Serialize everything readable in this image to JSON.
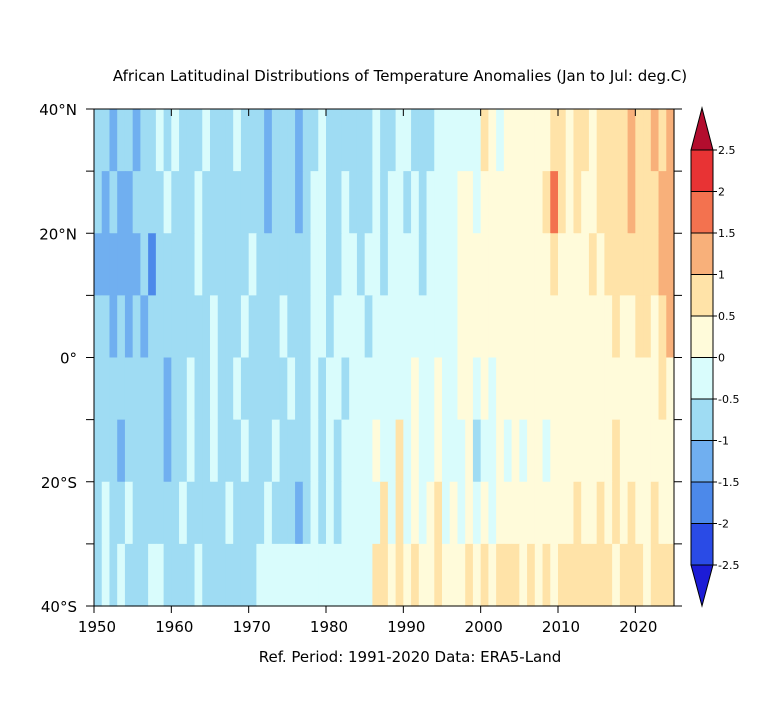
{
  "chart_data": {
    "type": "heatmap",
    "title": "African Latitudinal Distributions of Temperature Anomalies (Jan to Jul: deg.C)",
    "subtitle": "Ref. Period: 1991-2020 Data: ERA5-Land",
    "xlim": [
      1950,
      2025
    ],
    "ylim": [
      -40,
      40
    ],
    "x_ticks": [
      1950,
      1960,
      1970,
      1980,
      1990,
      2000,
      2010,
      2020
    ],
    "x_tick_labels": [
      "1950",
      "1960",
      "1970",
      "1980",
      "1990",
      "2000",
      "2010",
      "2020"
    ],
    "y_ticks": [
      -40,
      -20,
      0,
      20,
      40
    ],
    "y_tick_labels": [
      "40°S",
      "20°S",
      "0°",
      "20°N",
      "40°N"
    ],
    "colorbar": {
      "levels": [
        -2.5,
        -2,
        -1.5,
        -1,
        -0.5,
        0,
        0.5,
        1,
        1.5,
        2,
        2.5
      ],
      "level_labels": [
        "-2.5",
        "-2",
        "-1.5",
        "-1",
        "-0.5",
        "0",
        "0.5",
        "1",
        "1.5",
        "2",
        "2.5"
      ],
      "colors": [
        "#1c1cd6",
        "#2a4be6",
        "#4c89ea",
        "#70aff0",
        "#9fdcf3",
        "#d9fcfc",
        "#fffbda",
        "#ffe3a8",
        "#f8b07a",
        "#f3724f",
        "#e83334",
        "#b30d2e"
      ]
    },
    "data_grid": {
      "x_step": 1,
      "y_bands": [
        -40,
        -30,
        -20,
        -10,
        0,
        10,
        20,
        30,
        40
      ],
      "rows": [
        {
          "y0": 30,
          "y1": 40,
          "values": [
            -1.0,
            -1.0,
            -1.5,
            -1.0,
            -1.0,
            -1.5,
            -1.0,
            -1.0,
            -0.5,
            -1.0,
            -0.5,
            -1.0,
            -1.0,
            -1.0,
            -0.5,
            -1.0,
            -1.0,
            -1.0,
            -0.5,
            -1.0,
            -1.0,
            -1.0,
            -1.5,
            -1.0,
            -1.0,
            -1.0,
            -1.5,
            -1.0,
            -1.0,
            -0.5,
            -1.0,
            -1.0,
            -1.0,
            -1.0,
            -1.0,
            -1.0,
            -0.5,
            -1.0,
            -1.0,
            -0.5,
            -0.5,
            -1.0,
            -1.0,
            -1.0,
            -0.5,
            -0.5,
            -0.5,
            -0.5,
            -0.5,
            -0.5,
            0.5,
            0.0,
            -0.5,
            0.0,
            0.0,
            0.0,
            0.0,
            0.0,
            0.0,
            0.5,
            0.5,
            0.0,
            0.5,
            0.5,
            0.0,
            0.5,
            0.5,
            0.5,
            0.5,
            1.0,
            0.5,
            0.5,
            1.0,
            0.5,
            1.0
          ]
        },
        {
          "y0": 20,
          "y1": 30,
          "values": [
            -1.0,
            -1.5,
            -1.0,
            -1.5,
            -1.5,
            -1.0,
            -1.0,
            -1.0,
            -1.0,
            -0.5,
            -1.0,
            -1.0,
            -1.0,
            -0.5,
            -1.0,
            -1.0,
            -1.0,
            -1.0,
            -1.0,
            -1.0,
            -1.0,
            -1.0,
            -1.5,
            -1.0,
            -1.0,
            -1.0,
            -1.5,
            -1.0,
            -0.5,
            -0.5,
            -1.0,
            -1.0,
            -0.5,
            -1.0,
            -1.0,
            -1.0,
            -0.5,
            -1.0,
            -0.5,
            -0.5,
            -1.0,
            -0.5,
            -1.0,
            -0.5,
            -0.5,
            -0.5,
            -0.5,
            0.0,
            0.0,
            -0.5,
            0.0,
            0.0,
            0.0,
            0.0,
            0.0,
            0.0,
            0.0,
            0.0,
            0.5,
            1.5,
            0.5,
            0.0,
            0.5,
            0.0,
            0.0,
            0.5,
            0.5,
            0.5,
            0.5,
            1.0,
            0.5,
            0.5,
            0.5,
            1.0,
            1.0
          ]
        },
        {
          "y0": 10,
          "y1": 20,
          "values": [
            -1.5,
            -1.5,
            -1.5,
            -1.5,
            -1.5,
            -1.5,
            -1.0,
            -2.0,
            -1.0,
            -1.0,
            -1.0,
            -1.0,
            -1.0,
            -0.5,
            -1.0,
            -1.0,
            -1.0,
            -1.0,
            -1.0,
            -1.0,
            -0.5,
            -1.0,
            -1.0,
            -1.0,
            -1.0,
            -1.0,
            -1.0,
            -1.0,
            -0.5,
            -0.5,
            -1.0,
            -1.0,
            -0.5,
            -0.5,
            -1.0,
            -0.5,
            -0.5,
            -1.0,
            -0.5,
            -0.5,
            -0.5,
            -0.5,
            -1.0,
            -0.5,
            -0.5,
            -0.5,
            -0.5,
            0.0,
            0.0,
            0.0,
            0.0,
            0.0,
            0.0,
            0.0,
            0.0,
            0.0,
            0.0,
            0.0,
            0.0,
            0.5,
            0.0,
            0.0,
            0.0,
            0.0,
            0.5,
            0.0,
            0.5,
            0.5,
            0.5,
            0.5,
            0.5,
            0.5,
            0.5,
            1.0,
            1.0
          ]
        },
        {
          "y0": 0,
          "y1": 10,
          "values": [
            -1.0,
            -1.0,
            -1.5,
            -1.0,
            -1.5,
            -1.0,
            -1.5,
            -1.0,
            -1.0,
            -1.0,
            -1.0,
            -1.0,
            -1.0,
            -1.0,
            -1.0,
            -0.5,
            -1.0,
            -1.0,
            -1.0,
            -0.5,
            -1.0,
            -1.0,
            -1.0,
            -1.0,
            -0.5,
            -1.0,
            -1.0,
            -1.0,
            -0.5,
            -0.5,
            -1.0,
            -0.5,
            -0.5,
            -0.5,
            -0.5,
            -1.0,
            -0.5,
            -0.5,
            -0.5,
            -0.5,
            -0.5,
            -0.5,
            -0.5,
            -0.5,
            -0.5,
            -0.5,
            -0.5,
            0.0,
            0.0,
            0.0,
            0.0,
            0.0,
            0.0,
            0.0,
            0.0,
            0.0,
            0.0,
            0.0,
            0.0,
            0.0,
            0.0,
            0.0,
            0.0,
            0.0,
            0.0,
            0.0,
            0.0,
            0.5,
            0.0,
            0.0,
            0.5,
            0.5,
            0.0,
            0.5,
            1.0
          ]
        },
        {
          "y0": -10,
          "y1": 0,
          "values": [
            -1.0,
            -1.0,
            -1.0,
            -1.0,
            -1.0,
            -1.0,
            -1.0,
            -1.0,
            -1.0,
            -1.5,
            -1.0,
            -1.0,
            -0.5,
            -1.0,
            -1.0,
            -0.5,
            -1.0,
            -1.0,
            -0.5,
            -1.0,
            -1.0,
            -1.0,
            -1.0,
            -1.0,
            -1.0,
            -0.5,
            -1.0,
            -1.0,
            -0.5,
            -1.0,
            -0.5,
            -0.5,
            -1.0,
            -0.5,
            -0.5,
            -0.5,
            -0.5,
            -0.5,
            -0.5,
            -0.5,
            -0.5,
            0.0,
            -0.5,
            -0.5,
            0.0,
            -0.5,
            -0.5,
            0.0,
            0.0,
            -0.5,
            0.0,
            -0.5,
            0.0,
            0.0,
            0.0,
            0.0,
            0.0,
            0.0,
            0.0,
            0.0,
            0.0,
            0.0,
            0.0,
            0.0,
            0.0,
            0.0,
            0.0,
            0.0,
            0.0,
            0.0,
            0.0,
            0.0,
            0.0,
            0.5,
            0.0
          ]
        },
        {
          "y0": -20,
          "y1": -10,
          "values": [
            -1.0,
            -1.0,
            -1.0,
            -1.5,
            -1.0,
            -1.0,
            -1.0,
            -1.0,
            -1.0,
            -1.5,
            -1.0,
            -1.0,
            -0.5,
            -1.0,
            -1.0,
            -0.5,
            -1.0,
            -1.0,
            -1.0,
            -0.5,
            -1.0,
            -1.0,
            -1.0,
            -0.5,
            -1.0,
            -1.0,
            -1.0,
            -1.0,
            -0.5,
            -1.0,
            -0.5,
            -1.0,
            -0.5,
            -0.5,
            -0.5,
            -0.5,
            0.0,
            -0.5,
            -0.5,
            0.5,
            -0.5,
            0.0,
            -0.5,
            -0.5,
            0.0,
            -0.5,
            -0.5,
            -0.5,
            0.0,
            -1.0,
            -0.5,
            -0.5,
            0.0,
            -0.5,
            0.0,
            -0.5,
            0.0,
            0.0,
            -0.5,
            0.0,
            0.0,
            0.0,
            0.0,
            0.0,
            0.0,
            0.0,
            0.0,
            0.5,
            0.0,
            0.0,
            0.0,
            0.0,
            0.0,
            0.0,
            0.0
          ]
        },
        {
          "y0": -30,
          "y1": -20,
          "values": [
            -1.0,
            -0.5,
            -1.0,
            -1.0,
            -0.5,
            -1.0,
            -1.0,
            -1.0,
            -1.0,
            -1.0,
            -1.0,
            -0.5,
            -1.0,
            -1.0,
            -1.0,
            -1.0,
            -1.0,
            -0.5,
            -1.0,
            -1.0,
            -1.0,
            -1.0,
            -0.5,
            -1.0,
            -1.0,
            -1.0,
            -1.5,
            -1.0,
            -0.5,
            -1.0,
            -0.5,
            -1.0,
            -0.5,
            -0.5,
            -0.5,
            -0.5,
            -0.5,
            0.5,
            -0.5,
            0.5,
            -0.5,
            0.0,
            -0.5,
            0.0,
            0.5,
            -0.5,
            0.0,
            -0.5,
            0.0,
            -0.5,
            0.0,
            -0.5,
            0.0,
            0.0,
            0.0,
            0.0,
            0.0,
            0.0,
            0.0,
            0.0,
            0.0,
            0.0,
            0.5,
            0.0,
            0.0,
            0.5,
            0.0,
            0.5,
            0.0,
            0.5,
            0.0,
            0.0,
            0.5,
            0.0,
            0.0
          ]
        },
        {
          "y0": -40,
          "y1": -30,
          "values": [
            -1.0,
            -0.5,
            -1.0,
            -0.5,
            -1.0,
            -1.0,
            -1.0,
            -0.5,
            -0.5,
            -1.0,
            -1.0,
            -1.0,
            -1.0,
            -0.5,
            -1.0,
            -1.0,
            -1.0,
            -1.0,
            -1.0,
            -1.0,
            -1.0,
            -0.5,
            -0.5,
            -0.5,
            -0.5,
            -0.5,
            -0.5,
            -0.5,
            -0.5,
            -0.5,
            -0.5,
            -0.5,
            -0.5,
            -0.5,
            -0.5,
            -0.5,
            0.5,
            0.5,
            0.0,
            0.5,
            0.0,
            0.5,
            0.0,
            0.0,
            0.5,
            0.0,
            0.0,
            0.0,
            0.5,
            0.0,
            0.5,
            0.0,
            0.5,
            0.5,
            0.5,
            0.0,
            0.5,
            0.0,
            0.5,
            0.0,
            0.5,
            0.5,
            0.5,
            0.5,
            0.5,
            0.5,
            0.5,
            0.0,
            0.5,
            0.5,
            0.5,
            0.0,
            0.5,
            0.5,
            0.5
          ]
        }
      ]
    },
    "colors": {
      "axis": "#000000",
      "background": "#ffffff"
    }
  }
}
